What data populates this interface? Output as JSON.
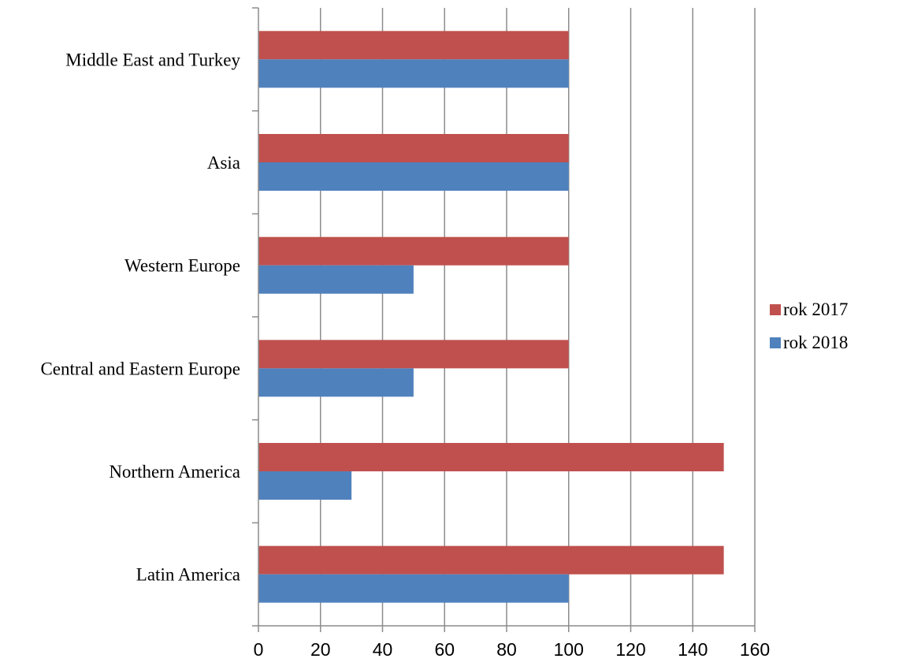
{
  "chart_data": {
    "type": "bar",
    "orientation": "horizontal",
    "categories": [
      "Latin America",
      "Northern America",
      "Central and Eastern Europe",
      "Western Europe",
      "Asia",
      "Middle East and Turkey"
    ],
    "series": [
      {
        "name": "rok 2017",
        "color": "#c0504d",
        "values": [
          150,
          150,
          100,
          100,
          100,
          100
        ]
      },
      {
        "name": "rok 2018",
        "color": "#4f81bd",
        "values": [
          100,
          30,
          50,
          50,
          100,
          100
        ]
      }
    ],
    "xlim": [
      0,
      160
    ],
    "xticks": [
      0,
      20,
      40,
      60,
      80,
      100,
      120,
      140,
      160
    ],
    "grid": "vertical",
    "legend_position": "right",
    "title": "",
    "xlabel": "",
    "ylabel": ""
  }
}
